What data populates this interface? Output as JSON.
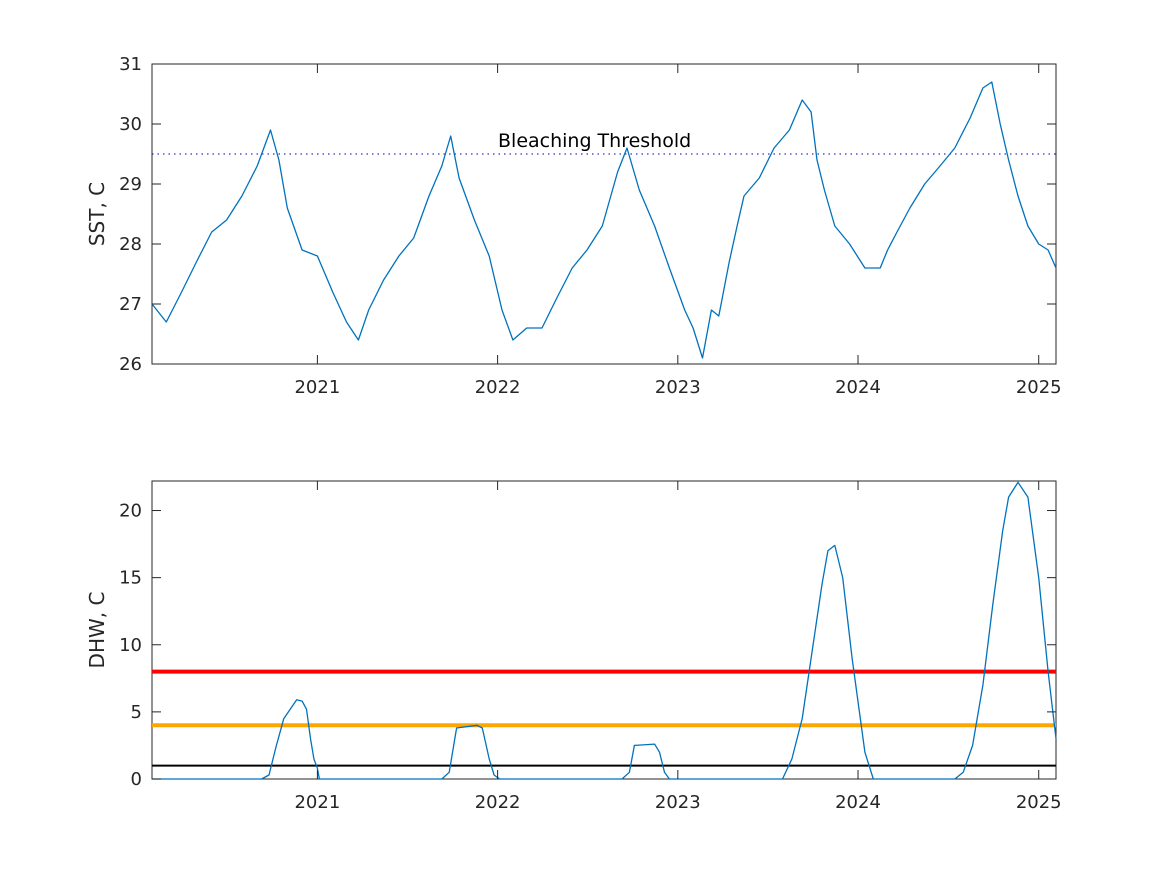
{
  "chart_data": [
    {
      "type": "line",
      "ylabel": "SST, C",
      "xlim": [
        "2020-02-01",
        "2025-02-05"
      ],
      "ylim": [
        26,
        31
      ],
      "grid": false,
      "x_ticks": [
        "2021",
        "2022",
        "2023",
        "2024",
        "2025"
      ],
      "y_ticks": [
        "26",
        "27",
        "28",
        "29",
        "30",
        "31"
      ],
      "series": [
        {
          "color": "#0072BD",
          "x": [
            "2020-02-01",
            "2020-03-01",
            "2020-04-01",
            "2020-05-01",
            "2020-06-01",
            "2020-07-01",
            "2020-08-01",
            "2020-09-01",
            "2020-09-28",
            "2020-10-15",
            "2020-11-01",
            "2020-12-01",
            "2021-01-01",
            "2021-02-01",
            "2021-03-01",
            "2021-03-25",
            "2021-04-15",
            "2021-05-15",
            "2021-06-15",
            "2021-07-15",
            "2021-08-15",
            "2021-09-10",
            "2021-09-28",
            "2021-10-15",
            "2021-11-15",
            "2021-12-15",
            "2022-01-10",
            "2022-02-01",
            "2022-03-01",
            "2022-04-01",
            "2022-05-01",
            "2022-06-01",
            "2022-07-01",
            "2022-08-01",
            "2022-09-01",
            "2022-09-20",
            "2022-10-15",
            "2022-11-15",
            "2022-12-15",
            "2023-01-15",
            "2023-02-01",
            "2023-02-20",
            "2023-03-10",
            "2023-03-25",
            "2023-04-15",
            "2023-05-01",
            "2023-05-15",
            "2023-06-15",
            "2023-07-15",
            "2023-08-15",
            "2023-09-10",
            "2023-09-28",
            "2023-10-10",
            "2023-10-25",
            "2023-11-15",
            "2023-12-15",
            "2024-01-15",
            "2024-02-15",
            "2024-03-01",
            "2024-03-20",
            "2024-04-15",
            "2024-05-15",
            "2024-06-15",
            "2024-07-15",
            "2024-08-15",
            "2024-09-10",
            "2024-09-28",
            "2024-10-15",
            "2024-11-01",
            "2024-11-20",
            "2024-12-10",
            "2025-01-01",
            "2025-01-20",
            "2025-02-05"
          ],
          "values": [
            27.0,
            26.7,
            27.2,
            27.7,
            28.2,
            28.4,
            28.8,
            29.3,
            29.9,
            29.4,
            28.6,
            27.9,
            27.8,
            27.2,
            26.7,
            26.4,
            26.9,
            27.4,
            27.8,
            28.1,
            28.8,
            29.3,
            29.8,
            29.1,
            28.4,
            27.8,
            26.9,
            26.4,
            26.6,
            26.6,
            27.1,
            27.6,
            27.9,
            28.3,
            29.2,
            29.6,
            28.9,
            28.3,
            27.6,
            26.9,
            26.6,
            26.1,
            26.9,
            26.8,
            27.7,
            28.3,
            28.8,
            29.1,
            29.6,
            29.9,
            30.4,
            30.2,
            29.4,
            28.9,
            28.3,
            28.0,
            27.6,
            27.6,
            27.9,
            28.2,
            28.6,
            29.0,
            29.3,
            29.6,
            30.1,
            30.6,
            30.7,
            30.0,
            29.4,
            28.8,
            28.3,
            28.0,
            27.9,
            27.6
          ]
        }
      ],
      "threshold": {
        "value": 29.5,
        "label": "Bleaching Threshold",
        "color": "#0000AA",
        "style": "dotted"
      }
    },
    {
      "type": "line",
      "ylabel": "DHW, C",
      "xlim": [
        "2020-02-01",
        "2025-02-05"
      ],
      "ylim": [
        0,
        22.2
      ],
      "grid": false,
      "x_ticks": [
        "2021",
        "2022",
        "2023",
        "2024",
        "2025"
      ],
      "y_ticks": [
        "0",
        "5",
        "10",
        "15",
        "20"
      ],
      "series": [
        {
          "color": "#0072BD",
          "x": [
            "2020-02-01",
            "2020-09-10",
            "2020-09-25",
            "2020-10-10",
            "2020-10-25",
            "2020-11-20",
            "2020-12-01",
            "2020-12-10",
            "2020-12-18",
            "2020-12-25",
            "2021-01-01",
            "2021-01-05",
            "2021-09-10",
            "2021-09-25",
            "2021-10-10",
            "2021-11-20",
            "2021-12-01",
            "2021-12-15",
            "2021-12-25",
            "2022-01-05",
            "2022-09-10",
            "2022-09-25",
            "2022-10-05",
            "2022-11-15",
            "2022-11-25",
            "2022-12-05",
            "2022-12-15",
            "2023-08-01",
            "2023-08-20",
            "2023-09-10",
            "2023-09-30",
            "2023-10-20",
            "2023-11-01",
            "2023-11-15",
            "2023-12-01",
            "2023-12-20",
            "2024-01-15",
            "2024-02-01",
            "2024-07-15",
            "2024-08-01",
            "2024-08-20",
            "2024-09-10",
            "2024-09-30",
            "2024-10-20",
            "2024-11-01",
            "2024-11-20",
            "2024-12-10",
            "2025-01-01",
            "2025-01-20",
            "2025-02-05"
          ],
          "values": [
            0,
            0,
            0.3,
            2.5,
            4.5,
            5.9,
            5.8,
            5.2,
            3.0,
            1.5,
            0.8,
            0,
            0,
            0.5,
            3.8,
            4.0,
            3.8,
            1.5,
            0.3,
            0,
            0,
            0.5,
            2.5,
            2.6,
            2.0,
            0.5,
            0,
            0,
            1.5,
            4.5,
            9.5,
            14.5,
            17.0,
            17.4,
            15.0,
            9.0,
            2.0,
            0,
            0,
            0.5,
            2.5,
            7.0,
            13.0,
            18.5,
            21.0,
            22.1,
            21.0,
            15.0,
            8.0,
            3.0
          ]
        }
      ],
      "hlines": [
        {
          "value": 8,
          "color": "#FF0000",
          "width": "thick"
        },
        {
          "value": 4,
          "color": "#FFA500",
          "width": "thick"
        },
        {
          "value": 1,
          "color": "#000000",
          "width": "thin"
        }
      ]
    }
  ]
}
